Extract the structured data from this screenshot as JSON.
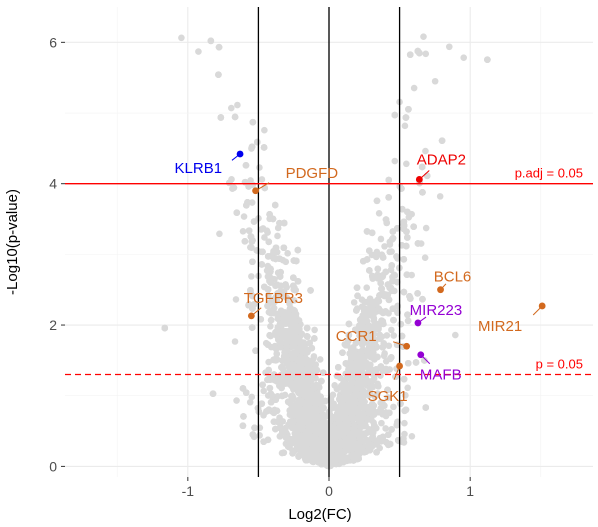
{
  "chart_data": {
    "type": "scatter",
    "title": "",
    "xlabel": "Log2(FC)",
    "ylabel": "-Log10(p-value)",
    "xlim": [
      -1.87,
      1.87
    ],
    "ylim": [
      -0.15,
      6.5
    ],
    "x_ticks": [
      -1,
      0,
      1
    ],
    "y_ticks": [
      0,
      2,
      4,
      6
    ],
    "grid": true,
    "legend": "none",
    "background_point_color": "#d9d9d9",
    "vlines": [
      -0.5,
      0,
      0.5
    ],
    "hlines": [
      {
        "y": 4.0,
        "label": "p.adj = 0.05",
        "style": "solid",
        "color": "#ff0000"
      },
      {
        "y": 1.3,
        "label": "p = 0.05",
        "style": "dashed",
        "color": "#ff0000"
      }
    ],
    "background_points_summary": "approx. 6000 non-labelled genes forming a volcano shape, |Log2FC| up to ~1.2, -Log10(p) up to ~6.1",
    "highlighted_points": [
      {
        "gene": "KLRB1",
        "x": -0.63,
        "y": 4.42,
        "color": "#0000ee",
        "label_anchor": "end"
      },
      {
        "gene": "PDGFD",
        "x": -0.52,
        "y": 3.9,
        "color": "#d2691e",
        "label_anchor": "start"
      },
      {
        "gene": "TGFBR3",
        "x": -0.55,
        "y": 2.13,
        "color": "#d2691e",
        "label_anchor": "middle"
      },
      {
        "gene": "ADAP2",
        "x": 0.64,
        "y": 4.06,
        "color": "#ee0000",
        "label_anchor": "middle"
      },
      {
        "gene": "BCL6",
        "x": 0.79,
        "y": 2.5,
        "color": "#d2691e",
        "label_anchor": "middle"
      },
      {
        "gene": "MIR223",
        "x": 0.63,
        "y": 2.03,
        "color": "#9400d3",
        "label_anchor": "middle"
      },
      {
        "gene": "MIR21",
        "x": 1.51,
        "y": 2.27,
        "color": "#d2691e",
        "label_anchor": "end"
      },
      {
        "gene": "CCR1",
        "x": 0.55,
        "y": 1.7,
        "color": "#d2691e",
        "label_anchor": "end"
      },
      {
        "gene": "MAFB",
        "x": 0.65,
        "y": 1.58,
        "color": "#9400d3",
        "label_anchor": "middle"
      },
      {
        "gene": "SGK1",
        "x": 0.5,
        "y": 1.42,
        "color": "#d2691e",
        "label_anchor": "middle"
      }
    ]
  }
}
